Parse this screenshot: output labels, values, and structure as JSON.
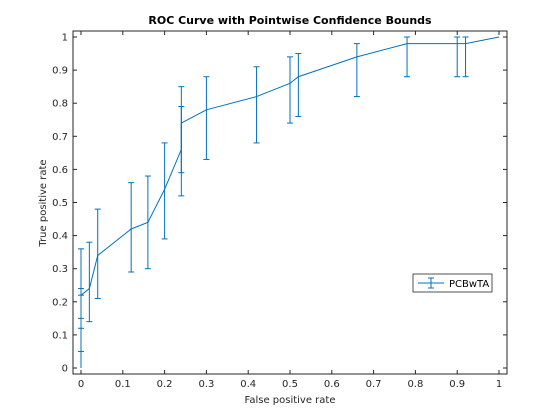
{
  "chart_data": {
    "type": "line",
    "title": "ROC Curve with Pointwise Confidence Bounds",
    "xlabel": "False positive rate",
    "ylabel": "True positive rate",
    "xlim": [
      0,
      1
    ],
    "ylim": [
      0,
      1
    ],
    "x_ticks": [
      "0",
      "0.1",
      "0.2",
      "0.3",
      "0.4",
      "0.5",
      "0.6",
      "0.7",
      "0.8",
      "0.9",
      "1"
    ],
    "y_ticks": [
      "0",
      "0.1",
      "0.2",
      "0.3",
      "0.4",
      "0.5",
      "0.6",
      "0.7",
      "0.8",
      "0.9",
      "1"
    ],
    "grid": false,
    "legend_position": "right",
    "series": [
      {
        "name": "PCBwTA",
        "color": "#0072BD",
        "x": [
          0,
          0,
          0,
          0,
          0.02,
          0.04,
          0.12,
          0.16,
          0.2,
          0.24,
          0.24,
          0.3,
          0.42,
          0.5,
          0.52,
          0.66,
          0.78,
          0.9,
          0.92,
          1.0
        ],
        "y": [
          0,
          0.1,
          0.18,
          0.22,
          0.24,
          0.34,
          0.42,
          0.44,
          0.54,
          0.66,
          0.74,
          0.78,
          0.82,
          0.86,
          0.88,
          0.94,
          0.98,
          0.98,
          0.98,
          1.0
        ],
        "lower": [
          0,
          0.05,
          0.12,
          0.15,
          0.14,
          0.21,
          0.29,
          0.3,
          0.39,
          0.52,
          0.59,
          0.63,
          0.68,
          0.74,
          0.76,
          0.82,
          0.88,
          0.88,
          0.88,
          1.0
        ],
        "upper": [
          0,
          0.24,
          0.36,
          0.22,
          0.38,
          0.48,
          0.56,
          0.58,
          0.68,
          0.79,
          0.85,
          0.88,
          0.91,
          0.94,
          0.95,
          0.98,
          1.0,
          1.0,
          1.0,
          1.0
        ]
      }
    ]
  }
}
